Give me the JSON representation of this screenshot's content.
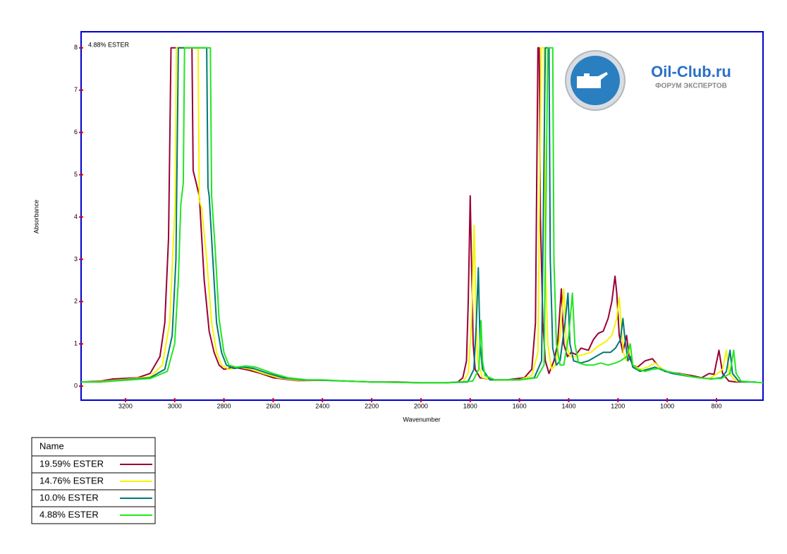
{
  "chart_data": {
    "type": "line",
    "annotation": "4.88% ESTER",
    "y_label": "Absorbance",
    "x_label": "Wavenumber",
    "legend_title": "Name",
    "xlim": [
      3380,
      611
    ],
    "xticks": [
      3200,
      3000,
      2800,
      2600,
      2400,
      2200,
      2000,
      1800,
      1600,
      1400,
      1200,
      1000,
      800
    ],
    "ylim": [
      -0.33,
      8.38
    ],
    "yticks": [
      0,
      1,
      2,
      3,
      4,
      5,
      6,
      7,
      8
    ],
    "series": [
      {
        "name": "19.59% ESTER",
        "color": "#990033",
        "x": [
          3380,
          3300,
          3250,
          3150,
          3100,
          3060,
          3040,
          3025,
          3015,
          2930,
          2925,
          2900,
          2880,
          2860,
          2840,
          2820,
          2800,
          2760,
          2700,
          2650,
          2600,
          2500,
          2400,
          2300,
          2200,
          2100,
          2000,
          1900,
          1850,
          1830,
          1815,
          1808,
          1800,
          1795,
          1788,
          1780,
          1760,
          1700,
          1650,
          1580,
          1550,
          1535,
          1525,
          1520,
          1515,
          1505,
          1495,
          1480,
          1460,
          1445,
          1430,
          1420,
          1405,
          1390,
          1370,
          1350,
          1320,
          1300,
          1280,
          1260,
          1240,
          1225,
          1212,
          1205,
          1195,
          1180,
          1165,
          1155,
          1140,
          1120,
          1090,
          1060,
          1040,
          1010,
          980,
          950,
          900,
          860,
          830,
          810,
          790,
          775,
          750,
          720,
          680
        ],
        "values": [
          0.1,
          0.12,
          0.17,
          0.2,
          0.3,
          0.7,
          1.5,
          3.5,
          8,
          8,
          5.1,
          4.5,
          2.5,
          1.3,
          0.8,
          0.5,
          0.4,
          0.45,
          0.38,
          0.3,
          0.2,
          0.13,
          0.14,
          0.12,
          0.1,
          0.1,
          0.08,
          0.08,
          0.1,
          0.2,
          0.6,
          2,
          4.5,
          3,
          1,
          0.4,
          0.2,
          0.15,
          0.15,
          0.2,
          0.4,
          1.5,
          8,
          8,
          4,
          1.5,
          0.6,
          0.3,
          0.6,
          1,
          2.3,
          1,
          0.7,
          0.8,
          0.75,
          0.9,
          0.85,
          1.1,
          1.25,
          1.3,
          1.6,
          2,
          2.6,
          2.2,
          1.2,
          0.8,
          1.2,
          0.7,
          0.5,
          0.45,
          0.6,
          0.65,
          0.5,
          0.35,
          0.32,
          0.3,
          0.25,
          0.2,
          0.3,
          0.28,
          0.85,
          0.3,
          0.12,
          0.1,
          0.1
        ]
      },
      {
        "name": "14.76% ESTER",
        "color": "#f5f500",
        "x": [
          3380,
          3300,
          3200,
          3100,
          3050,
          3020,
          3005,
          2998,
          2993,
          2905,
          2900,
          2890,
          2870,
          2850,
          2830,
          2810,
          2780,
          2740,
          2690,
          2640,
          2580,
          2500,
          2400,
          2300,
          2200,
          2100,
          2000,
          1900,
          1830,
          1808,
          1795,
          1784,
          1778,
          1770,
          1750,
          1700,
          1600,
          1550,
          1525,
          1512,
          1500,
          1495,
          1485,
          1470,
          1455,
          1435,
          1420,
          1410,
          1395,
          1370,
          1340,
          1310,
          1280,
          1250,
          1225,
          1205,
          1195,
          1188,
          1178,
          1165,
          1152,
          1140,
          1110,
          1080,
          1050,
          1020,
          980,
          940,
          880,
          830,
          800,
          775,
          760,
          748,
          720,
          680
        ],
        "values": [
          0.1,
          0.11,
          0.16,
          0.22,
          0.5,
          1.5,
          3.5,
          4.3,
          8,
          8,
          4.4,
          4.2,
          3,
          1.5,
          0.8,
          0.5,
          0.4,
          0.45,
          0.4,
          0.3,
          0.2,
          0.14,
          0.14,
          0.12,
          0.1,
          0.09,
          0.08,
          0.08,
          0.1,
          0.3,
          1.5,
          3.8,
          2,
          0.6,
          0.2,
          0.14,
          0.15,
          0.25,
          0.8,
          8,
          8,
          3,
          1,
          0.4,
          0.5,
          1.2,
          2.3,
          1,
          0.7,
          0.7,
          0.75,
          0.8,
          0.95,
          1.05,
          1.2,
          1.6,
          2.1,
          1.5,
          0.8,
          0.6,
          1,
          0.5,
          0.4,
          0.45,
          0.55,
          0.4,
          0.3,
          0.28,
          0.2,
          0.18,
          0.28,
          0.4,
          0.85,
          0.3,
          0.12,
          0.1
        ]
      },
      {
        "name": "10.0% ESTER",
        "color": "#007878",
        "x": [
          3380,
          3300,
          3200,
          3100,
          3040,
          3010,
          2995,
          2985,
          2870,
          2865,
          2860,
          2845,
          2830,
          2810,
          2790,
          2760,
          2720,
          2680,
          2620,
          2560,
          2480,
          2400,
          2300,
          2200,
          2100,
          2000,
          1900,
          1810,
          1785,
          1775,
          1767,
          1760,
          1750,
          1720,
          1600,
          1540,
          1510,
          1495,
          1480,
          1475,
          1465,
          1450,
          1435,
          1415,
          1403,
          1395,
          1380,
          1350,
          1320,
          1290,
          1260,
          1230,
          1210,
          1190,
          1180,
          1173,
          1160,
          1150,
          1140,
          1110,
          1080,
          1050,
          1020,
          980,
          930,
          870,
          820,
          780,
          760,
          745,
          735,
          710,
          680,
          640
        ],
        "values": [
          0.1,
          0.1,
          0.15,
          0.2,
          0.4,
          1.2,
          3,
          8,
          8,
          4.7,
          4.5,
          3,
          1.5,
          0.8,
          0.5,
          0.42,
          0.45,
          0.42,
          0.3,
          0.2,
          0.15,
          0.14,
          0.12,
          0.1,
          0.09,
          0.08,
          0.08,
          0.1,
          0.4,
          1.5,
          2.8,
          1,
          0.4,
          0.15,
          0.15,
          0.2,
          0.6,
          8,
          8,
          3,
          0.9,
          0.5,
          0.6,
          1.5,
          2.2,
          1,
          0.6,
          0.55,
          0.6,
          0.7,
          0.8,
          0.8,
          0.9,
          1.1,
          1.6,
          1.2,
          0.6,
          0.7,
          0.45,
          0.35,
          0.4,
          0.45,
          0.38,
          0.3,
          0.25,
          0.2,
          0.17,
          0.2,
          0.35,
          0.85,
          0.3,
          0.12,
          0.1,
          0.1
        ]
      },
      {
        "name": "4.88% ESTER",
        "color": "#22e622",
        "x": [
          3380,
          3300,
          3200,
          3100,
          3030,
          3000,
          2985,
          2975,
          2965,
          2960,
          2855,
          2850,
          2835,
          2820,
          2800,
          2780,
          2750,
          2710,
          2670,
          2600,
          2540,
          2460,
          2400,
          2300,
          2200,
          2100,
          2000,
          1900,
          1790,
          1765,
          1756,
          1750,
          1740,
          1700,
          1600,
          1530,
          1500,
          1485,
          1465,
          1460,
          1450,
          1435,
          1420,
          1400,
          1385,
          1375,
          1360,
          1330,
          1300,
          1270,
          1240,
          1210,
          1190,
          1165,
          1150,
          1140,
          1120,
          1090,
          1060,
          1030,
          1000,
          960,
          900,
          840,
          780,
          745,
          730,
          720,
          700,
          660,
          611
        ],
        "values": [
          0.1,
          0.1,
          0.14,
          0.18,
          0.35,
          1,
          2.5,
          4.3,
          4.8,
          8,
          8,
          4.5,
          3.2,
          1.6,
          0.8,
          0.5,
          0.45,
          0.48,
          0.45,
          0.3,
          0.2,
          0.15,
          0.15,
          0.12,
          0.1,
          0.09,
          0.08,
          0.08,
          0.12,
          0.4,
          1.55,
          0.6,
          0.25,
          0.15,
          0.15,
          0.2,
          0.5,
          8,
          8,
          3,
          1,
          0.5,
          0.5,
          1.2,
          2.2,
          1,
          0.55,
          0.5,
          0.5,
          0.55,
          0.5,
          0.55,
          0.6,
          0.7,
          1,
          0.5,
          0.4,
          0.35,
          0.4,
          0.42,
          0.35,
          0.3,
          0.22,
          0.18,
          0.18,
          0.3,
          0.85,
          0.3,
          0.12,
          0.1,
          0.08
        ]
      }
    ]
  },
  "watermark": {
    "title": "Oil-Club.ru",
    "subtitle": "ФОРУМ ЭКСПЕРТОВ"
  }
}
